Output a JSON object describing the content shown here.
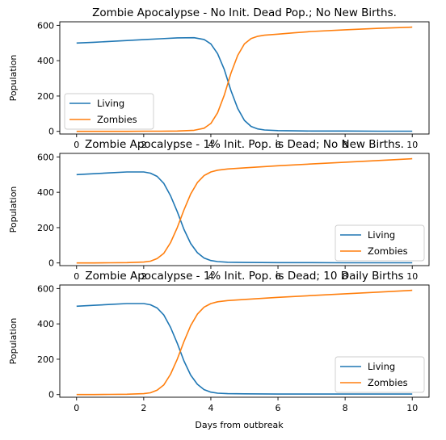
{
  "figure": {
    "xlabel": "Days from outbreak"
  },
  "chart_data": [
    {
      "type": "line",
      "title": "Zombie Apocalypse - No Init. Dead Pop.; No New Births.",
      "xlabel": "",
      "ylabel": "Population",
      "xlim": [
        -0.5,
        10.5
      ],
      "ylim": [
        -15,
        620
      ],
      "xticks": [
        0,
        2,
        4,
        6,
        8,
        10
      ],
      "yticks": [
        0,
        200,
        400,
        600
      ],
      "legend": "lower-left",
      "grid": false,
      "series": [
        {
          "name": "Living",
          "color": "#1f77b4",
          "x": [
            0,
            0.5,
            1,
            1.5,
            2,
            2.5,
            3,
            3.5,
            3.8,
            4.0,
            4.2,
            4.4,
            4.6,
            4.8,
            5.0,
            5.2,
            5.4,
            5.6,
            6,
            6.5,
            7,
            8,
            9,
            10
          ],
          "y": [
            500,
            504,
            509,
            514,
            519,
            524,
            529,
            530,
            520,
            495,
            440,
            350,
            230,
            130,
            62,
            28,
            14,
            8,
            4,
            3,
            2,
            2,
            1,
            1
          ]
        },
        {
          "name": "Zombies",
          "color": "#ff7f0e",
          "x": [
            0,
            0.5,
            1,
            1.5,
            2,
            2.5,
            3,
            3.5,
            3.8,
            4.0,
            4.2,
            4.4,
            4.6,
            4.8,
            5.0,
            5.2,
            5.4,
            5.6,
            6,
            6.5,
            7,
            8,
            9,
            10
          ],
          "y": [
            0,
            0,
            0,
            0,
            1,
            1,
            2,
            6,
            18,
            45,
            105,
            205,
            330,
            430,
            495,
            525,
            538,
            544,
            550,
            558,
            565,
            575,
            583,
            590
          ]
        }
      ]
    },
    {
      "type": "line",
      "title": "Zombie Apocalypse - 1% Init. Pop. is Dead; No New Births.",
      "xlabel": "",
      "ylabel": "Population",
      "xlim": [
        -0.5,
        10.5
      ],
      "ylim": [
        -15,
        620
      ],
      "xticks": [
        0,
        2,
        4,
        6,
        8,
        10
      ],
      "yticks": [
        0,
        200,
        400,
        600
      ],
      "legend": "lower-right",
      "grid": false,
      "series": [
        {
          "name": "Living",
          "color": "#1f77b4",
          "x": [
            0,
            0.5,
            1,
            1.5,
            2,
            2.2,
            2.4,
            2.6,
            2.8,
            3.0,
            3.2,
            3.4,
            3.6,
            3.8,
            4.0,
            4.2,
            4.5,
            5,
            6,
            7,
            8,
            9,
            10
          ],
          "y": [
            500,
            505,
            510,
            515,
            515,
            508,
            490,
            450,
            380,
            290,
            190,
            110,
            58,
            28,
            14,
            8,
            4,
            3,
            2,
            2,
            1,
            1,
            1
          ]
        },
        {
          "name": "Zombies",
          "color": "#ff7f0e",
          "x": [
            0,
            0.5,
            1,
            1.5,
            2,
            2.2,
            2.4,
            2.6,
            2.8,
            3.0,
            3.2,
            3.4,
            3.6,
            3.8,
            4.0,
            4.2,
            4.5,
            5,
            6,
            7,
            8,
            9,
            10
          ],
          "y": [
            0,
            0,
            1,
            2,
            5,
            10,
            25,
            55,
            115,
            200,
            300,
            390,
            455,
            495,
            515,
            525,
            532,
            538,
            550,
            560,
            570,
            580,
            590
          ]
        }
      ]
    },
    {
      "type": "line",
      "title": "Zombie Apocalypse - 1% Init. Pop. is Dead; 10 Daily Births",
      "xlabel": "Days from outbreak",
      "ylabel": "Population",
      "xlim": [
        -0.5,
        10.5
      ],
      "ylim": [
        -15,
        620
      ],
      "xticks": [
        0,
        2,
        4,
        6,
        8,
        10
      ],
      "yticks": [
        0,
        200,
        400,
        600
      ],
      "legend": "lower-right",
      "grid": false,
      "series": [
        {
          "name": "Living",
          "color": "#1f77b4",
          "x": [
            0,
            0.5,
            1,
            1.5,
            2,
            2.2,
            2.4,
            2.6,
            2.8,
            3.0,
            3.2,
            3.4,
            3.6,
            3.8,
            4.0,
            4.2,
            4.5,
            5,
            6,
            7,
            8,
            9,
            10
          ],
          "y": [
            500,
            505,
            510,
            515,
            515,
            508,
            490,
            450,
            380,
            290,
            190,
            110,
            58,
            28,
            14,
            8,
            5,
            4,
            3,
            3,
            3,
            3,
            3
          ]
        },
        {
          "name": "Zombies",
          "color": "#ff7f0e",
          "x": [
            0,
            0.5,
            1,
            1.5,
            2,
            2.2,
            2.4,
            2.6,
            2.8,
            3.0,
            3.2,
            3.4,
            3.6,
            3.8,
            4.0,
            4.2,
            4.5,
            5,
            6,
            7,
            8,
            9,
            10
          ],
          "y": [
            0,
            0,
            1,
            2,
            5,
            10,
            25,
            55,
            115,
            200,
            300,
            390,
            455,
            495,
            515,
            525,
            532,
            538,
            550,
            560,
            570,
            580,
            590
          ]
        }
      ]
    }
  ]
}
